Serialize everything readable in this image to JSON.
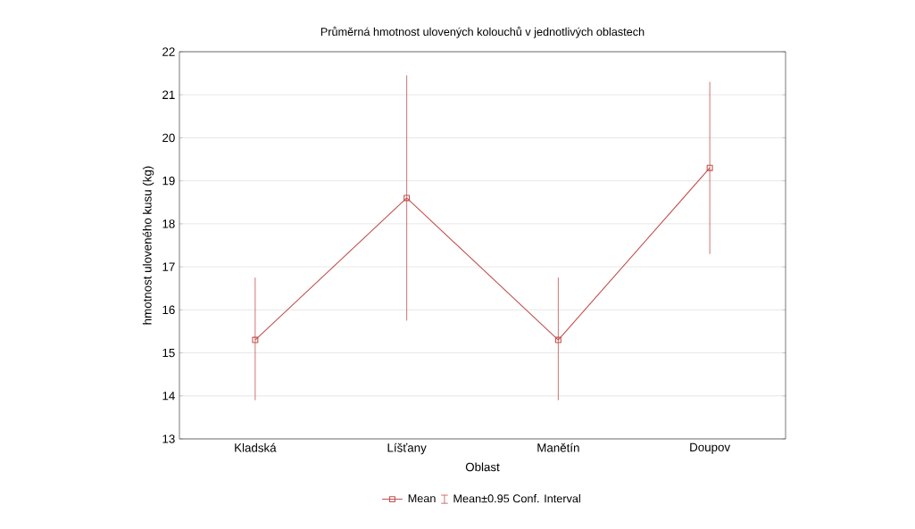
{
  "chart_data": {
    "type": "line",
    "title": "Průměrná hmotnost ulovených kolouchů v jednotlivých oblastech",
    "xlabel": "Oblast",
    "ylabel": "hmotnost uloveného kusu (kg)",
    "categories": [
      "Kladská",
      "Líšťany",
      "Manětín",
      "Doupov"
    ],
    "series": [
      {
        "name": "Mean",
        "color": "#c0504d",
        "values": [
          15.3,
          18.6,
          15.3,
          19.3
        ],
        "errors": [
          [
            13.9,
            16.75
          ],
          [
            15.75,
            21.45
          ],
          [
            13.9,
            16.75
          ],
          [
            17.3,
            21.3
          ]
        ]
      }
    ],
    "annotations": [
      "Mean±0.95 Conf. Interval"
    ],
    "ylim": [
      13,
      22
    ],
    "yticks": [
      13,
      14,
      15,
      16,
      17,
      18,
      19,
      20,
      21,
      22
    ],
    "grid": "y",
    "legend": "bottom",
    "marker": "square",
    "line_style": "solid"
  }
}
